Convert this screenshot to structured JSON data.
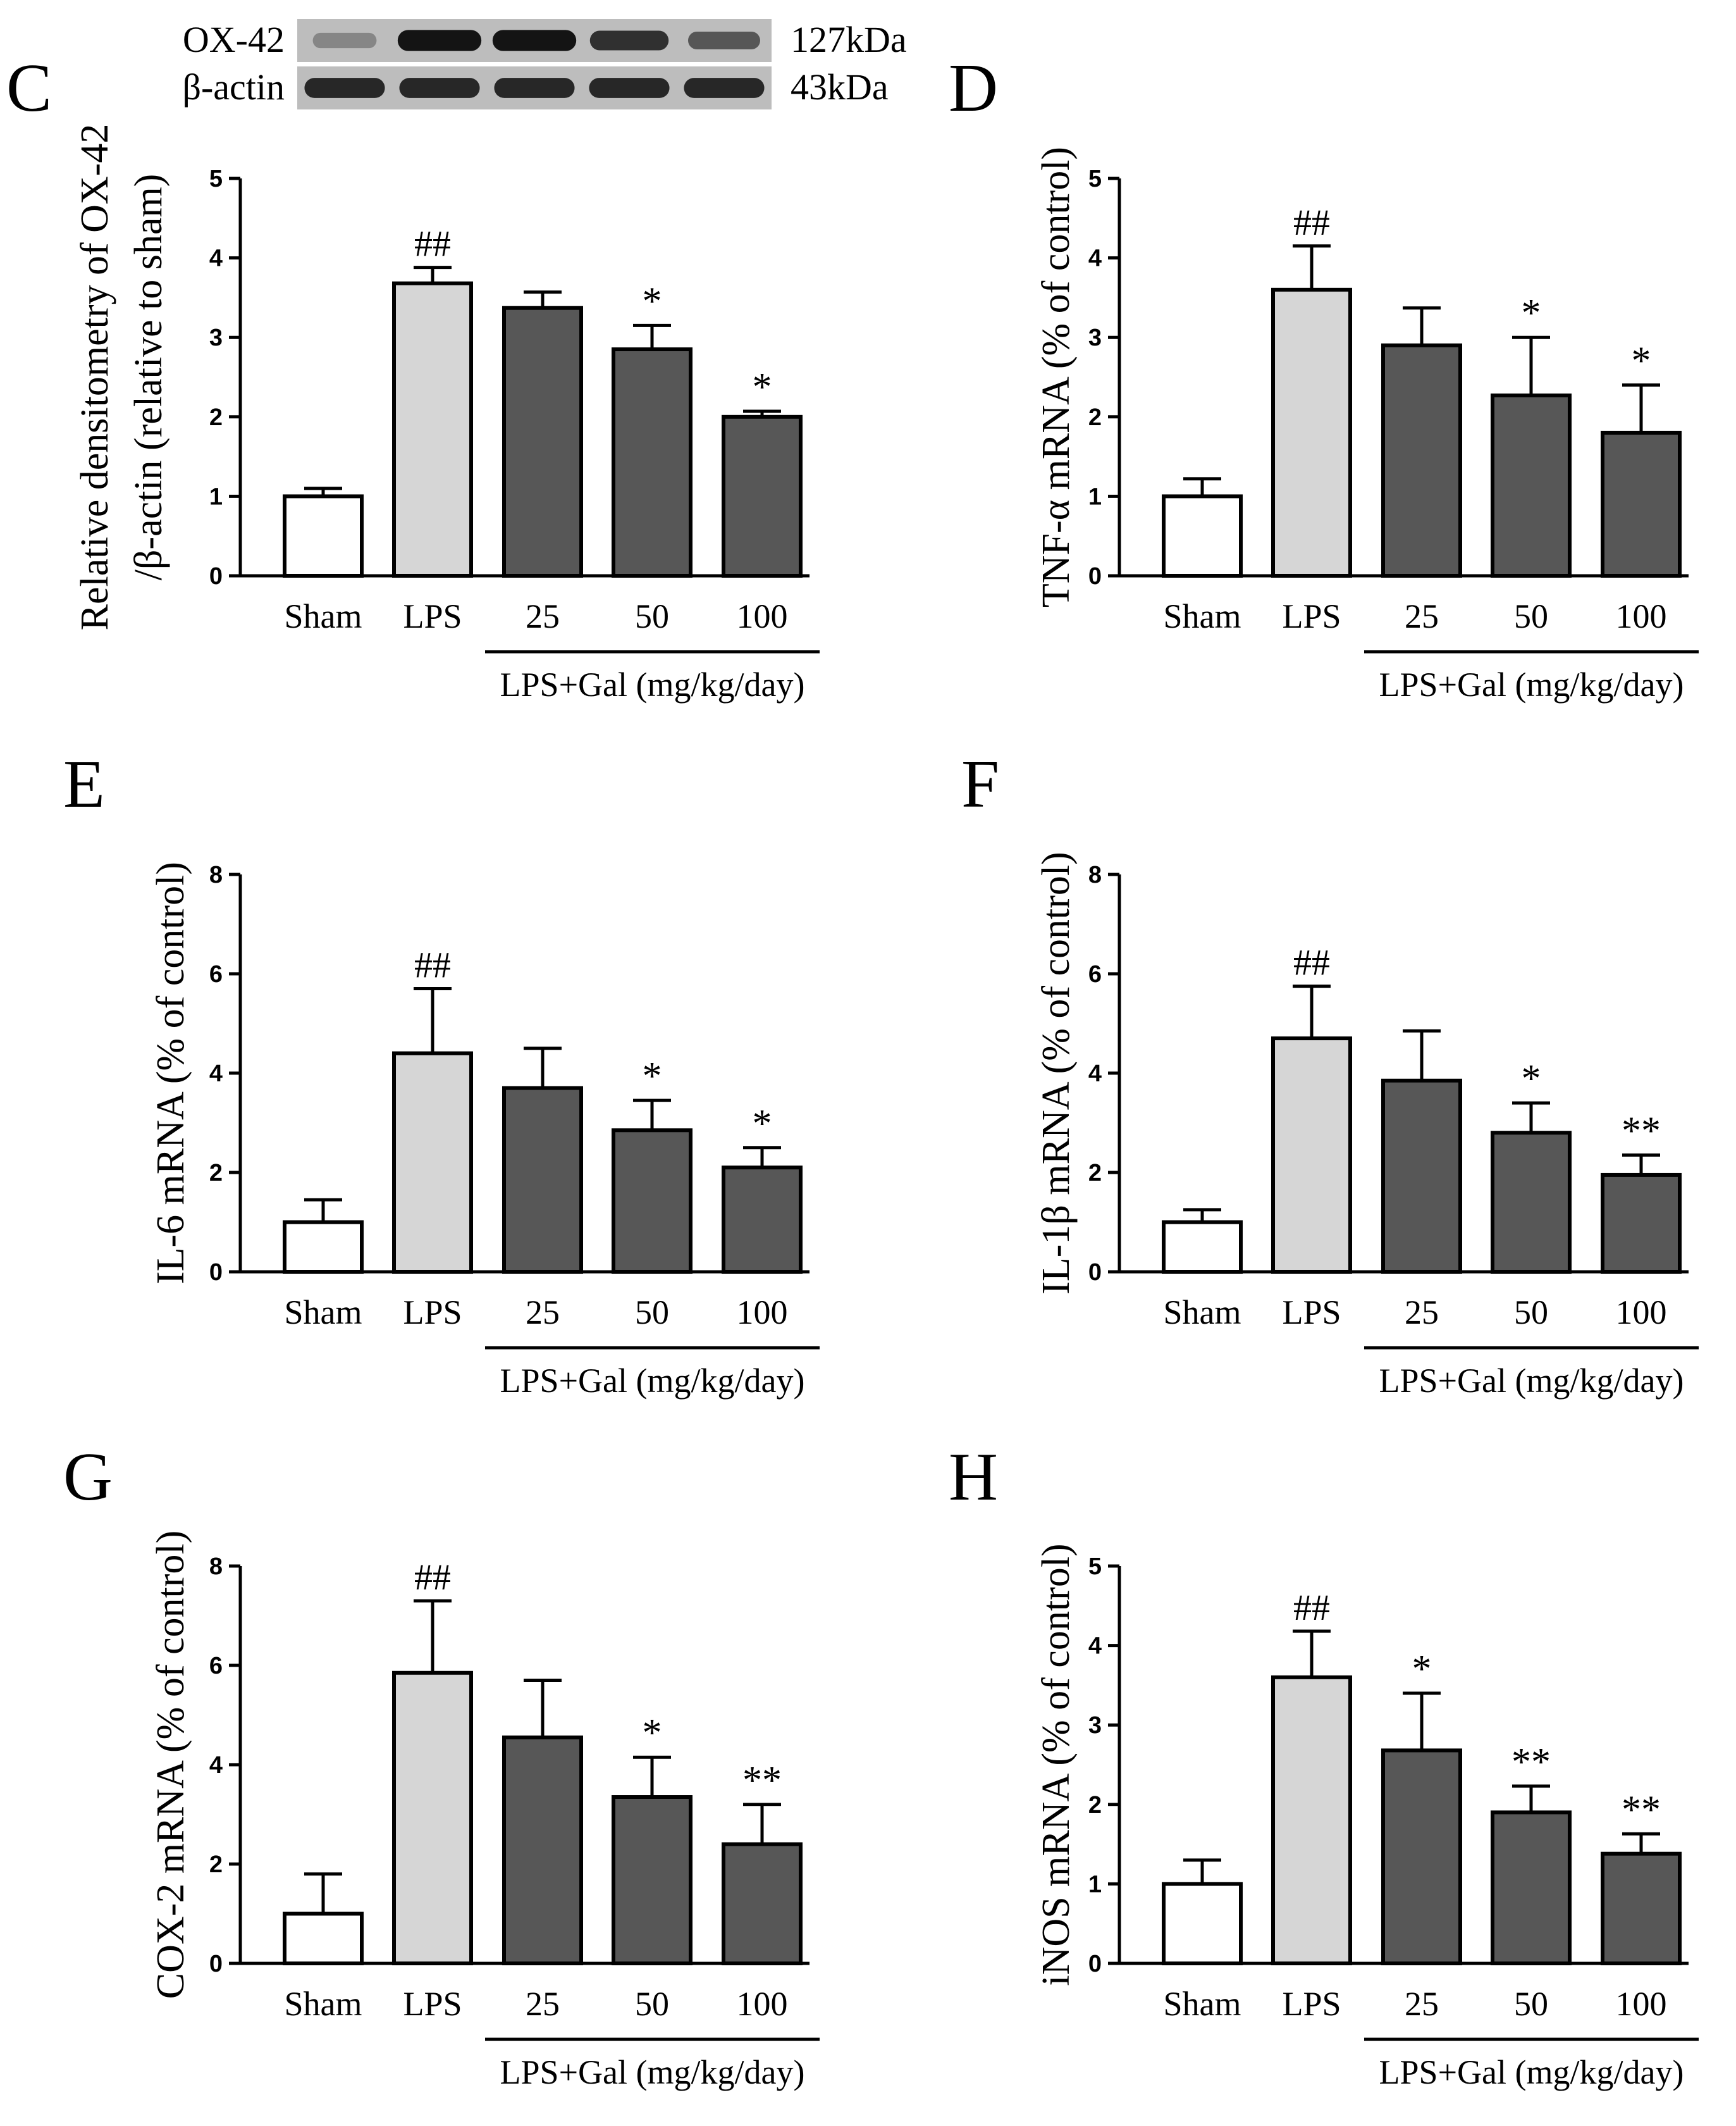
{
  "blot": {
    "rows": [
      {
        "protein": "OX-42",
        "size": "127kDa",
        "band_intensity": [
          0.35,
          0.95,
          0.95,
          0.8,
          0.6
        ]
      },
      {
        "protein": "β-actin",
        "size": "43kDa",
        "band_intensity": [
          0.85,
          0.85,
          0.85,
          0.85,
          0.85
        ]
      }
    ]
  },
  "colors": {
    "sham": "#ffffff",
    "lps": "#d6d6d6",
    "gal": "#575757",
    "stroke": "#000000"
  },
  "chart_data": [
    {
      "panel": "C",
      "type": "bar",
      "categories": [
        "Sham",
        "LPS",
        "25",
        "50",
        "100"
      ],
      "values": [
        1.0,
        3.68,
        3.37,
        2.85,
        2.0
      ],
      "errors": [
        0.1,
        0.2,
        0.2,
        0.3,
        0.07
      ],
      "significance": [
        "",
        "##",
        "",
        "*",
        "*"
      ],
      "ylabel": [
        "Relative densitometry of OX-42",
        "/β-actin (relative to sham)"
      ],
      "group_label": "LPS+Gal (mg/kg/day)",
      "ylim": [
        0,
        5
      ],
      "yticks": [
        0,
        1,
        2,
        3,
        4,
        5
      ]
    },
    {
      "panel": "D",
      "type": "bar",
      "categories": [
        "Sham",
        "LPS",
        "25",
        "50",
        "100"
      ],
      "values": [
        1.0,
        3.6,
        2.9,
        2.27,
        1.8
      ],
      "errors": [
        0.22,
        0.55,
        0.47,
        0.73,
        0.6
      ],
      "significance": [
        "",
        "##",
        "",
        "*",
        "*"
      ],
      "ylabel": [
        "TNF-α mRNA (% of control)"
      ],
      "group_label": "LPS+Gal (mg/kg/day)",
      "ylim": [
        0,
        5
      ],
      "yticks": [
        0,
        1,
        2,
        3,
        4,
        5
      ]
    },
    {
      "panel": "E",
      "type": "bar",
      "categories": [
        "Sham",
        "LPS",
        "25",
        "50",
        "100"
      ],
      "values": [
        1.0,
        4.4,
        3.7,
        2.85,
        2.1
      ],
      "errors": [
        0.45,
        1.3,
        0.8,
        0.6,
        0.4
      ],
      "significance": [
        "",
        "##",
        "",
        "*",
        "*"
      ],
      "ylabel": [
        "IL-6 mRNA (% of control)"
      ],
      "group_label": "LPS+Gal (mg/kg/day)",
      "ylim": [
        0,
        8
      ],
      "yticks": [
        0,
        2,
        4,
        6,
        8
      ]
    },
    {
      "panel": "F",
      "type": "bar",
      "categories": [
        "Sham",
        "LPS",
        "25",
        "50",
        "100"
      ],
      "values": [
        1.0,
        4.7,
        3.85,
        2.8,
        1.95
      ],
      "errors": [
        0.25,
        1.05,
        1.0,
        0.6,
        0.4
      ],
      "significance": [
        "",
        "##",
        "",
        "*",
        "**"
      ],
      "ylabel": [
        "IL-1β mRNA (% of control)"
      ],
      "group_label": "LPS+Gal (mg/kg/day)",
      "ylim": [
        0,
        8
      ],
      "yticks": [
        0,
        2,
        4,
        6,
        8
      ]
    },
    {
      "panel": "G",
      "type": "bar",
      "categories": [
        "Sham",
        "LPS",
        "25",
        "50",
        "100"
      ],
      "values": [
        1.0,
        5.85,
        4.55,
        3.35,
        2.4
      ],
      "errors": [
        0.8,
        1.45,
        1.15,
        0.8,
        0.8
      ],
      "significance": [
        "",
        "##",
        "",
        "*",
        "**"
      ],
      "ylabel": [
        "COX-2 mRNA (% of control)"
      ],
      "group_label": "LPS+Gal (mg/kg/day)",
      "ylim": [
        0,
        8
      ],
      "yticks": [
        0,
        2,
        4,
        6,
        8
      ]
    },
    {
      "panel": "H",
      "type": "bar",
      "categories": [
        "Sham",
        "LPS",
        "25",
        "50",
        "100"
      ],
      "values": [
        1.0,
        3.6,
        2.68,
        1.9,
        1.38
      ],
      "errors": [
        0.3,
        0.58,
        0.72,
        0.33,
        0.25
      ],
      "significance": [
        "",
        "##",
        "*",
        "**",
        "**"
      ],
      "ylabel": [
        "iNOS mRNA (% of control)"
      ],
      "group_label": "LPS+Gal (mg/kg/day)",
      "ylim": [
        0,
        5
      ],
      "yticks": [
        0,
        1,
        2,
        3,
        4,
        5
      ]
    }
  ]
}
